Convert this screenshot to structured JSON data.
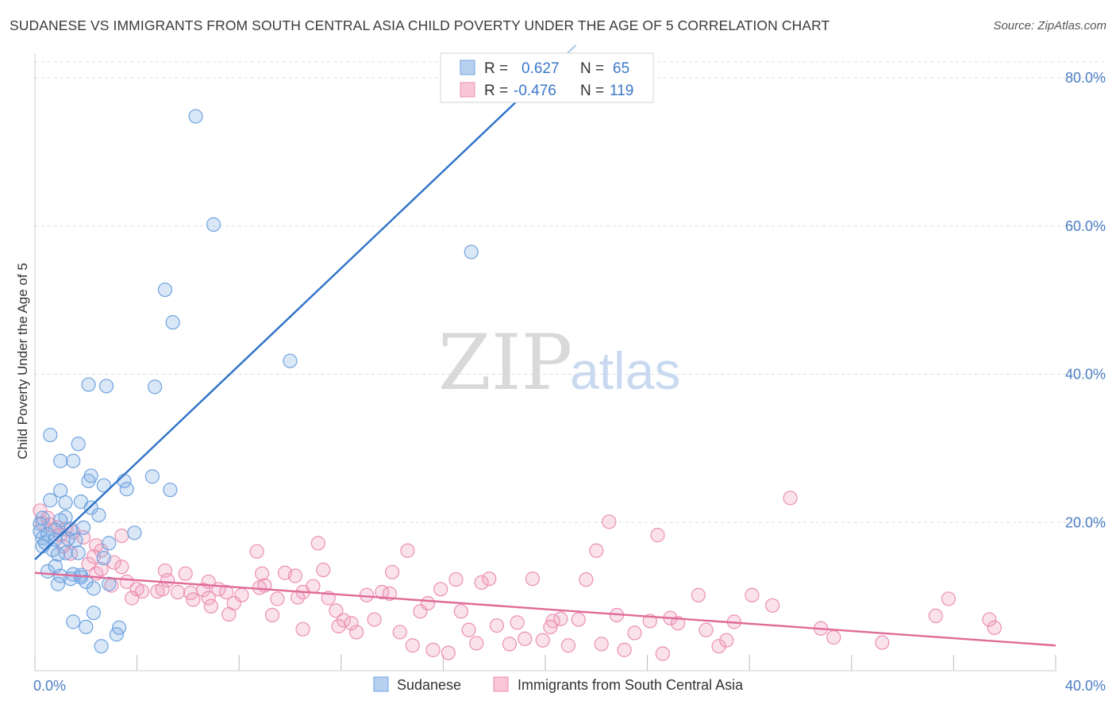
{
  "title": "SUDANESE VS IMMIGRANTS FROM SOUTH CENTRAL ASIA CHILD POVERTY UNDER THE AGE OF 5 CORRELATION CHART",
  "source": "Source: ZipAtlas.com",
  "watermark": {
    "zip": "ZIP",
    "atlas": "atlas"
  },
  "colors": {
    "blue": "#6fa3e0",
    "blue_fill": "rgba(130,175,230,0.30)",
    "blue_line": "#2c72c8",
    "pink": "#ec8fb0",
    "pink_fill": "rgba(240,160,190,0.30)",
    "pink_line": "#e06a98",
    "grid": "#dddddd",
    "axis_text": "#4a7cc4"
  },
  "legend": {
    "r_label": "R =",
    "n_label": "N =",
    "rows": [
      {
        "series": "Sudanese",
        "r": "0.627",
        "n": "65"
      },
      {
        "series": "Immigrants from South Central Asia",
        "r": "-0.476",
        "n": "119"
      }
    ]
  },
  "chart_data": {
    "type": "scatter",
    "title": "SUDANESE VS IMMIGRANTS FROM SOUTH CENTRAL ASIA CHILD POVERTY UNDER THE AGE OF 5 CORRELATION CHART",
    "xlabel": "",
    "ylabel": "Child Poverty Under the Age of 5",
    "xlim": [
      0,
      40
    ],
    "ylim": [
      0,
      80
    ],
    "x_ticks": [
      0,
      4,
      8,
      12,
      16,
      20,
      24,
      28,
      32,
      36,
      40
    ],
    "x_tick_labels": {
      "0": "0.0%",
      "40": "40.0%"
    },
    "y_ticks": [
      20,
      40,
      60,
      80
    ],
    "y_tick_labels": [
      "20.0%",
      "40.0%",
      "60.0%",
      "80.0%"
    ],
    "grid": true,
    "legend_position": "top-center",
    "series": [
      {
        "name": "Sudanese",
        "color": "blue",
        "trend": {
          "x": [
            0,
            20
          ],
          "y": [
            15.0,
            80.5
          ]
        },
        "points": [
          [
            6.3,
            74.8
          ],
          [
            7.0,
            60.2
          ],
          [
            17.1,
            56.5
          ],
          [
            5.1,
            51.4
          ],
          [
            5.4,
            47.0
          ],
          [
            10.0,
            41.8
          ],
          [
            2.1,
            38.6
          ],
          [
            2.8,
            38.4
          ],
          [
            4.7,
            38.3
          ],
          [
            0.6,
            31.8
          ],
          [
            1.7,
            30.6
          ],
          [
            1.0,
            28.3
          ],
          [
            1.5,
            28.3
          ],
          [
            2.2,
            26.3
          ],
          [
            2.1,
            25.6
          ],
          [
            4.6,
            26.2
          ],
          [
            3.5,
            25.6
          ],
          [
            2.7,
            25.0
          ],
          [
            3.6,
            24.5
          ],
          [
            5.3,
            24.4
          ],
          [
            1.0,
            24.3
          ],
          [
            0.6,
            23.0
          ],
          [
            1.8,
            22.8
          ],
          [
            1.2,
            22.7
          ],
          [
            2.2,
            22.0
          ],
          [
            2.5,
            21.0
          ],
          [
            0.3,
            20.6
          ],
          [
            1.2,
            20.7
          ],
          [
            1.0,
            20.3
          ],
          [
            0.2,
            19.8
          ],
          [
            1.4,
            19.1
          ],
          [
            1.9,
            19.3
          ],
          [
            0.8,
            19.0
          ],
          [
            0.5,
            18.4
          ],
          [
            0.3,
            17.9
          ],
          [
            0.8,
            17.7
          ],
          [
            1.3,
            17.8
          ],
          [
            2.9,
            17.2
          ],
          [
            3.9,
            18.6
          ],
          [
            0.3,
            16.8
          ],
          [
            0.7,
            16.3
          ],
          [
            1.2,
            15.9
          ],
          [
            1.7,
            15.9
          ],
          [
            2.7,
            15.2
          ],
          [
            1.8,
            12.9
          ],
          [
            0.5,
            13.4
          ],
          [
            0.8,
            14.1
          ],
          [
            1.5,
            13.0
          ],
          [
            1.8,
            12.6
          ],
          [
            1.4,
            12.4
          ],
          [
            2.3,
            11.1
          ],
          [
            0.9,
            11.7
          ],
          [
            2.9,
            11.7
          ],
          [
            1.5,
            6.6
          ],
          [
            2.0,
            5.9
          ],
          [
            2.3,
            7.8
          ],
          [
            3.3,
            5.8
          ],
          [
            3.2,
            4.9
          ],
          [
            2.6,
            3.3
          ],
          [
            0.2,
            18.8
          ],
          [
            0.4,
            17.3
          ],
          [
            0.9,
            15.7
          ],
          [
            2.0,
            12.0
          ],
          [
            1.0,
            12.8
          ],
          [
            1.6,
            17.6
          ]
        ]
      },
      {
        "name": "Immigrants from South Central Asia",
        "color": "pink",
        "trend": {
          "x": [
            0,
            40
          ],
          "y": [
            13.2,
            3.4
          ]
        },
        "points": [
          [
            0.2,
            21.6
          ],
          [
            0.5,
            20.6
          ],
          [
            0.3,
            19.9
          ],
          [
            0.6,
            19.7
          ],
          [
            0.9,
            19.3
          ],
          [
            1.2,
            19.1
          ],
          [
            1.5,
            18.7
          ],
          [
            1.0,
            18.3
          ],
          [
            1.9,
            18.0
          ],
          [
            3.4,
            18.2
          ],
          [
            2.4,
            16.9
          ],
          [
            2.6,
            16.2
          ],
          [
            1.4,
            15.8
          ],
          [
            2.3,
            15.4
          ],
          [
            2.1,
            14.4
          ],
          [
            2.6,
            13.7
          ],
          [
            3.1,
            14.6
          ],
          [
            3.4,
            14.0
          ],
          [
            2.4,
            13.1
          ],
          [
            3.6,
            12.0
          ],
          [
            4.0,
            11.0
          ],
          [
            4.2,
            10.7
          ],
          [
            3.8,
            9.8
          ],
          [
            4.8,
            10.7
          ],
          [
            5.0,
            11.0
          ],
          [
            5.1,
            13.5
          ],
          [
            5.6,
            10.6
          ],
          [
            5.9,
            13.1
          ],
          [
            6.1,
            10.5
          ],
          [
            6.2,
            9.6
          ],
          [
            6.6,
            10.9
          ],
          [
            6.8,
            9.8
          ],
          [
            6.9,
            8.7
          ],
          [
            7.2,
            11.0
          ],
          [
            7.5,
            10.6
          ],
          [
            7.6,
            7.6
          ],
          [
            8.1,
            10.2
          ],
          [
            7.8,
            9.1
          ],
          [
            8.8,
            11.2
          ],
          [
            8.9,
            13.1
          ],
          [
            9.0,
            11.5
          ],
          [
            8.7,
            16.1
          ],
          [
            9.3,
            7.5
          ],
          [
            9.8,
            13.2
          ],
          [
            10.2,
            12.8
          ],
          [
            10.5,
            10.6
          ],
          [
            10.9,
            11.4
          ],
          [
            10.3,
            9.9
          ],
          [
            11.1,
            17.2
          ],
          [
            11.3,
            13.6
          ],
          [
            11.5,
            9.8
          ],
          [
            11.8,
            8.1
          ],
          [
            12.1,
            6.8
          ],
          [
            10.5,
            5.6
          ],
          [
            11.9,
            6.0
          ],
          [
            12.4,
            6.4
          ],
          [
            12.6,
            5.2
          ],
          [
            13.0,
            10.2
          ],
          [
            13.3,
            6.9
          ],
          [
            13.6,
            10.6
          ],
          [
            14.0,
            13.3
          ],
          [
            14.3,
            5.2
          ],
          [
            14.6,
            16.2
          ],
          [
            14.8,
            3.4
          ],
          [
            15.1,
            8.0
          ],
          [
            15.4,
            9.1
          ],
          [
            15.6,
            2.8
          ],
          [
            15.9,
            11.0
          ],
          [
            16.2,
            2.4
          ],
          [
            16.5,
            12.3
          ],
          [
            16.7,
            8.0
          ],
          [
            17.0,
            5.5
          ],
          [
            17.3,
            3.7
          ],
          [
            17.8,
            12.4
          ],
          [
            18.1,
            6.1
          ],
          [
            18.6,
            3.6
          ],
          [
            18.9,
            6.5
          ],
          [
            19.2,
            4.3
          ],
          [
            19.5,
            12.4
          ],
          [
            19.9,
            4.1
          ],
          [
            20.3,
            6.7
          ],
          [
            20.6,
            7.0
          ],
          [
            20.9,
            3.4
          ],
          [
            21.3,
            6.9
          ],
          [
            21.6,
            12.3
          ],
          [
            22.0,
            16.2
          ],
          [
            22.2,
            3.6
          ],
          [
            22.5,
            20.1
          ],
          [
            22.8,
            7.5
          ],
          [
            23.1,
            2.8
          ],
          [
            23.5,
            5.1
          ],
          [
            24.1,
            6.7
          ],
          [
            24.4,
            18.3
          ],
          [
            24.6,
            2.3
          ],
          [
            24.9,
            7.1
          ],
          [
            25.2,
            6.4
          ],
          [
            26.0,
            10.2
          ],
          [
            26.3,
            5.5
          ],
          [
            26.8,
            3.3
          ],
          [
            27.1,
            4.1
          ],
          [
            27.4,
            6.6
          ],
          [
            28.1,
            10.2
          ],
          [
            28.9,
            8.8
          ],
          [
            29.6,
            23.3
          ],
          [
            30.8,
            5.7
          ],
          [
            31.3,
            4.5
          ],
          [
            33.2,
            3.8
          ],
          [
            35.3,
            7.4
          ],
          [
            35.8,
            9.7
          ],
          [
            37.4,
            6.9
          ],
          [
            37.6,
            5.8
          ],
          [
            5.2,
            12.2
          ],
          [
            6.8,
            12.0
          ],
          [
            9.5,
            9.7
          ],
          [
            13.9,
            10.4
          ],
          [
            17.5,
            11.9
          ],
          [
            20.2,
            5.9
          ],
          [
            1.1,
            16.8
          ],
          [
            3.0,
            11.5
          ]
        ]
      }
    ]
  }
}
